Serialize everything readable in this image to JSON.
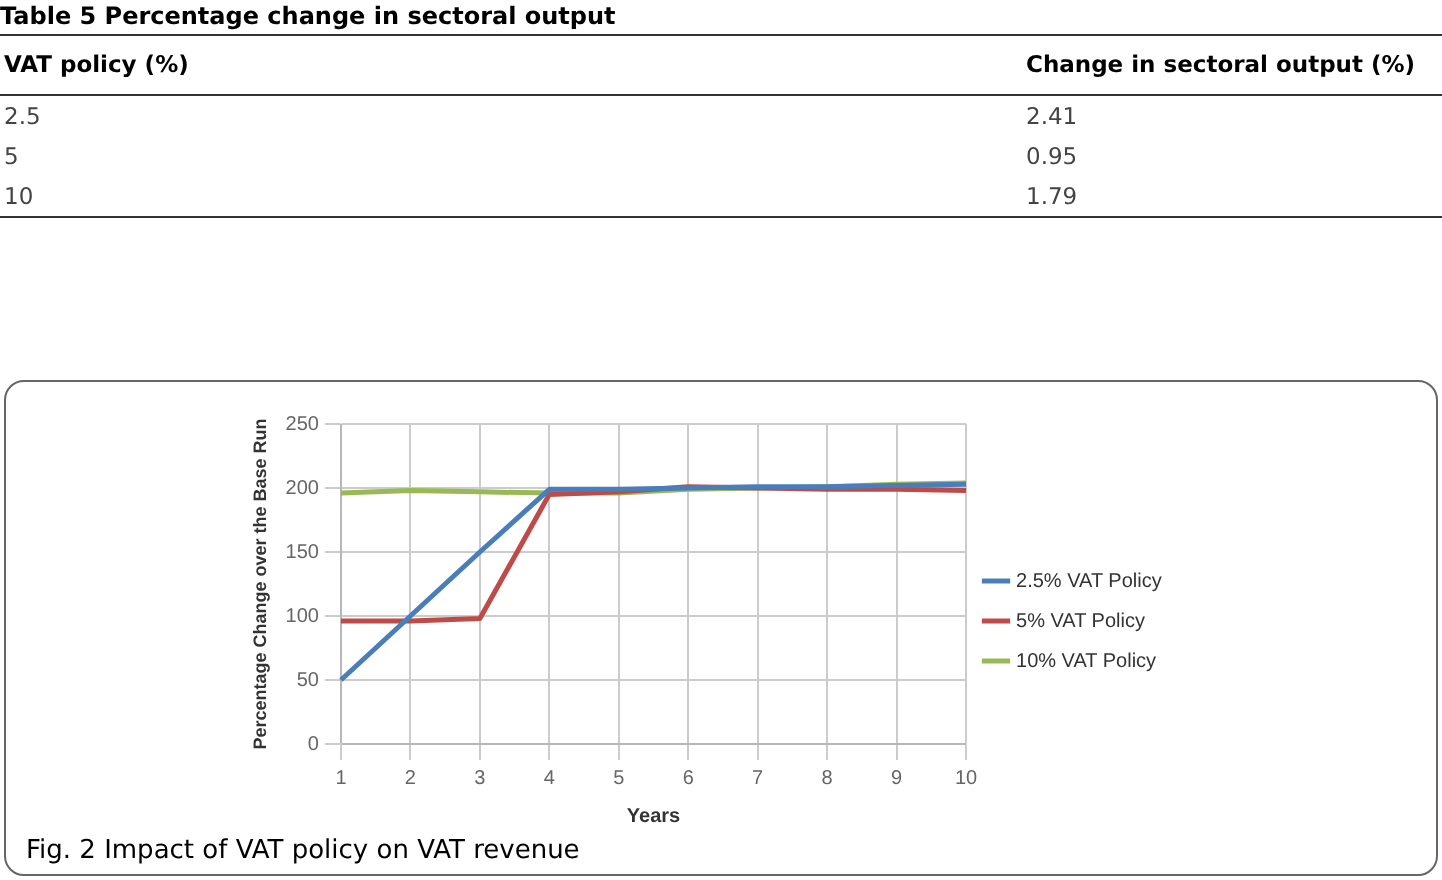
{
  "chart_data": [
    {
      "type": "other",
      "title": "Table 5 Percentage change in sectoral output",
      "annotations": [
        "VAT policy (%)",
        "Change in sectoral output (%)",
        "2.5",
        "2.41",
        "5",
        "0.95",
        "10",
        "1.79"
      ]
    },
    {
      "type": "line",
      "xlabel": "Years",
      "ylabel": "Percentage Change over the Base Run",
      "categories": [
        "1",
        "2",
        "3",
        "4",
        "5",
        "6",
        "7",
        "8",
        "9",
        "10"
      ],
      "series": [
        {
          "name": "2.5% VAT Policy",
          "color": "#4a7ebb",
          "values": [
            50,
            100,
            150,
            199,
            199,
            200,
            201,
            201,
            202,
            203
          ]
        },
        {
          "name": "5% VAT Policy",
          "color": "#be4b48",
          "values": [
            96,
            96,
            98,
            195,
            197,
            201,
            200,
            199,
            199,
            198
          ]
        },
        {
          "name": "10% VAT Policy",
          "color": "#98b954",
          "values": [
            196,
            198,
            197,
            196,
            196,
            199,
            200,
            201,
            203,
            204
          ]
        }
      ],
      "ylim": [
        0,
        250
      ],
      "yticks": [
        0,
        50,
        100,
        150,
        200,
        250
      ],
      "grid": true,
      "legend": "right",
      "marker": "none",
      "line_style": "solid",
      "annotations": [
        "Fig. 2 Impact of VAT policy on VAT revenue"
      ]
    }
  ]
}
